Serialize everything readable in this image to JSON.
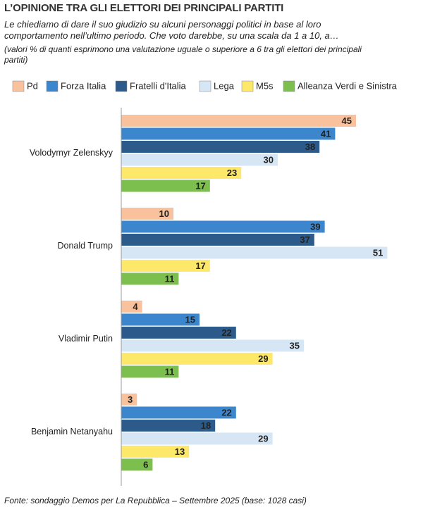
{
  "chart_data": {
    "type": "bar",
    "orientation": "horizontal",
    "title": "L’OPINIONE TRA GLI ELETTORI DEI PRINCIPALI PARTITI",
    "subtitle": "Le chiediamo di dare il suo giudizio su alcuni personaggi politici in base al loro comportamento nell’ultimo periodo. Che voto darebbe, su una scala da 1 a 10, a…",
    "note": "(valori % di quanti esprimono una valutazione uguale o superiore a 6 tra gli elettori dei principali partiti)",
    "source": "Fonte: sondaggio Demos per La Repubblica – Settembre 2025 (base: 1028 casi)",
    "categories": [
      "Volodymyr Zelenskyy",
      "Donald Trump",
      "Vladimir Putin",
      "Benjamin Netanyahu"
    ],
    "series": [
      {
        "name": "Pd",
        "color": "#f9c19c",
        "values": [
          45,
          10,
          4,
          3
        ]
      },
      {
        "name": "Forza Italia",
        "color": "#3b86cc",
        "values": [
          41,
          39,
          15,
          22
        ]
      },
      {
        "name": "Fratelli d'Italia",
        "color": "#2c5b8b",
        "values": [
          38,
          37,
          22,
          18
        ]
      },
      {
        "name": "Lega",
        "color": "#d6e6f5",
        "values": [
          30,
          51,
          35,
          29
        ]
      },
      {
        "name": "M5s",
        "color": "#fde86a",
        "values": [
          23,
          17,
          29,
          13
        ]
      },
      {
        "name": "Alleanza Verdi e Sinistra",
        "color": "#7dbf4e",
        "values": [
          17,
          11,
          11,
          6
        ]
      }
    ]
  }
}
